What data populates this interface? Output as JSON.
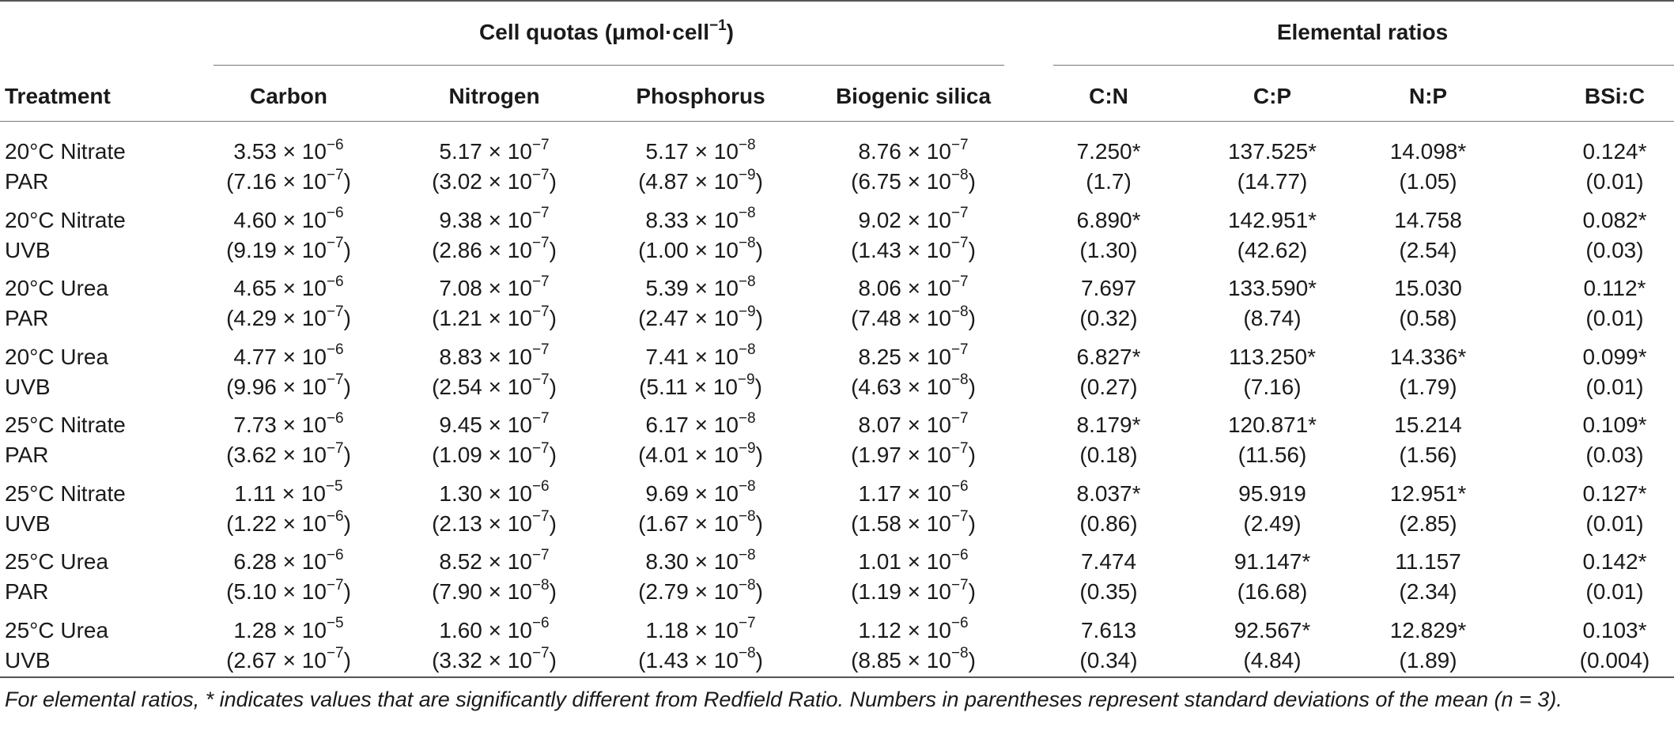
{
  "header": {
    "group_quotas": "Cell quotas (μmol·cell",
    "group_quotas_exp": "−1",
    "group_quotas_close": ")",
    "group_ratios": "Elemental ratios",
    "columns": [
      "Treatment",
      "Carbon",
      "Nitrogen",
      "Phosphorus",
      "Biogenic silica",
      "C:N",
      "C:P",
      "N:P",
      "BSi:C"
    ]
  },
  "rows": [
    {
      "t1": "20°C Nitrate",
      "t2": "PAR",
      "q": [
        [
          "3.53 × 10",
          "−6",
          "(7.16 × 10",
          "−7",
          ")"
        ],
        [
          "5.17 × 10",
          "−7",
          "(3.02 × 10",
          "−7",
          ")"
        ],
        [
          "5.17 × 10",
          "−8",
          "(4.87 × 10",
          "−9",
          ")"
        ],
        [
          "8.76 × 10",
          "−7",
          "(6.75 × 10",
          "−8",
          ")"
        ]
      ],
      "r": [
        [
          "7.250*",
          "(1.7)"
        ],
        [
          "137.525*",
          "(14.77)"
        ],
        [
          "14.098*",
          "(1.05)"
        ],
        [
          "0.124*",
          "(0.01)"
        ]
      ]
    },
    {
      "t1": "20°C Nitrate",
      "t2": "UVB",
      "q": [
        [
          "4.60 × 10",
          "−6",
          "(9.19 × 10",
          "−7",
          ")"
        ],
        [
          "9.38 × 10",
          "−7",
          "(2.86 × 10",
          "−7",
          ")"
        ],
        [
          "8.33 × 10",
          "−8",
          "(1.00 × 10",
          "−8",
          ")"
        ],
        [
          "9.02 × 10",
          "−7",
          "(1.43 × 10",
          "−7",
          ")"
        ]
      ],
      "r": [
        [
          "6.890*",
          "(1.30)"
        ],
        [
          "142.951*",
          "(42.62)"
        ],
        [
          "14.758",
          "(2.54)"
        ],
        [
          "0.082*",
          "(0.03)"
        ]
      ]
    },
    {
      "t1": "20°C Urea",
      "t2": "PAR",
      "q": [
        [
          "4.65 × 10",
          "−6",
          "(4.29 × 10",
          "−7",
          ")"
        ],
        [
          "7.08 × 10",
          "−7",
          "(1.21 × 10",
          "−7",
          ")"
        ],
        [
          "5.39 × 10",
          "−8",
          "(2.47 × 10",
          "−9",
          ")"
        ],
        [
          "8.06 × 10",
          "−7",
          "(7.48 × 10",
          "−8",
          ")"
        ]
      ],
      "r": [
        [
          "7.697",
          "(0.32)"
        ],
        [
          "133.590*",
          "(8.74)"
        ],
        [
          "15.030",
          "(0.58)"
        ],
        [
          "0.112*",
          "(0.01)"
        ]
      ]
    },
    {
      "t1": "20°C Urea",
      "t2": "UVB",
      "q": [
        [
          "4.77 × 10",
          "−6",
          "(9.96 × 10",
          "−7",
          ")"
        ],
        [
          "8.83 × 10",
          "−7",
          "(2.54 × 10",
          "−7",
          ")"
        ],
        [
          "7.41 × 10",
          "−8",
          "(5.11 × 10",
          "−9",
          ")"
        ],
        [
          "8.25 × 10",
          "−7",
          "(4.63 × 10",
          "−8",
          ")"
        ]
      ],
      "r": [
        [
          "6.827*",
          "(0.27)"
        ],
        [
          "113.250*",
          "(7.16)"
        ],
        [
          "14.336*",
          "(1.79)"
        ],
        [
          "0.099*",
          "(0.01)"
        ]
      ]
    },
    {
      "t1": "25°C Nitrate",
      "t2": "PAR",
      "q": [
        [
          "7.73 × 10",
          "−6",
          "(3.62 × 10",
          "−7",
          ")"
        ],
        [
          "9.45 × 10",
          "−7",
          "(1.09 × 10",
          "−7",
          ")"
        ],
        [
          "6.17 × 10",
          "−8",
          "(4.01 × 10",
          "−9",
          ")"
        ],
        [
          "8.07 × 10",
          "−7",
          "(1.97 × 10",
          "−7",
          ")"
        ]
      ],
      "r": [
        [
          "8.179*",
          "(0.18)"
        ],
        [
          "120.871*",
          "(11.56)"
        ],
        [
          "15.214",
          "(1.56)"
        ],
        [
          "0.109*",
          "(0.03)"
        ]
      ]
    },
    {
      "t1": "25°C Nitrate",
      "t2": "UVB",
      "q": [
        [
          "1.11 × 10",
          "−5",
          "(1.22 × 10",
          "−6",
          ")"
        ],
        [
          "1.30 × 10",
          "−6",
          "(2.13 × 10",
          "−7",
          ")"
        ],
        [
          "9.69 × 10",
          "−8",
          "(1.67 × 10",
          "−8",
          ")"
        ],
        [
          "1.17 × 10",
          "−6",
          "(1.58 × 10",
          "−7",
          ")"
        ]
      ],
      "r": [
        [
          "8.037*",
          "(0.86)"
        ],
        [
          "95.919",
          "(2.49)"
        ],
        [
          "12.951*",
          "(2.85)"
        ],
        [
          "0.127*",
          "(0.01)"
        ]
      ]
    },
    {
      "t1": "25°C Urea",
      "t2": "PAR",
      "q": [
        [
          "6.28 × 10",
          "−6",
          "(5.10 × 10",
          "−7",
          ")"
        ],
        [
          "8.52 × 10",
          "−7",
          "(7.90 × 10",
          "−8",
          ")"
        ],
        [
          "8.30 ×  10",
          "−8",
          "(2.79 × 10",
          "−8",
          ")"
        ],
        [
          "1.01 × 10",
          "−6",
          "(1.19 × 10",
          "−7",
          ")"
        ]
      ],
      "r": [
        [
          "7.474",
          "(0.35)"
        ],
        [
          "91.147*",
          "(16.68)"
        ],
        [
          "11.157",
          "(2.34)"
        ],
        [
          "0.142*",
          "(0.01)"
        ]
      ]
    },
    {
      "t1": "25°C Urea",
      "t2": "UVB",
      "q": [
        [
          "1.28 × 10",
          "−5",
          "(2.67 × 10",
          "−7",
          ")"
        ],
        [
          "1.60 × 10",
          "−6",
          "(3.32 × 10",
          "−7",
          ")"
        ],
        [
          "1.18 × 10",
          "−7",
          "(1.43 × 10",
          "−8",
          ")"
        ],
        [
          "1.12 × 10",
          "−6",
          "(8.85 × 10",
          "−8",
          ")"
        ]
      ],
      "r": [
        [
          "7.613",
          "(0.34)"
        ],
        [
          "92.567*",
          "(4.84)"
        ],
        [
          "12.829*",
          "(1.89)"
        ],
        [
          "0.103*",
          "(0.004)"
        ]
      ]
    }
  ],
  "footnote": "For elemental ratios, * indicates values that are significantly different from Redfield Ratio. Numbers in parentheses represent standard deviations of the mean (n = 3)."
}
